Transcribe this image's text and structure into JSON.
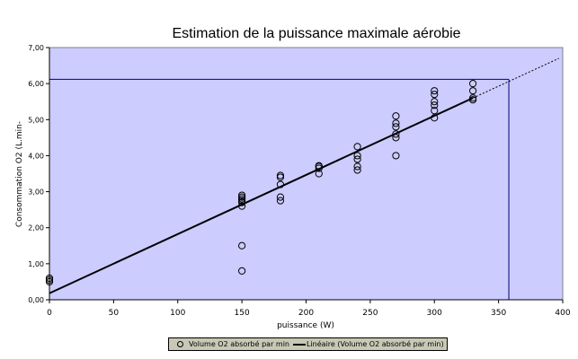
{
  "chart_data": {
    "type": "scatter",
    "title": "Estimation de la puissance maximale aérobie",
    "xlabel": "puissance (W)",
    "ylabel": "Consommation O2 (L.min-",
    "xlim": [
      0,
      400
    ],
    "ylim": [
      0,
      7
    ],
    "x_ticks": [
      "0",
      "50",
      "100",
      "150",
      "200",
      "250",
      "300",
      "350",
      "400"
    ],
    "y_ticks": [
      "0,00",
      "1,00",
      "2,00",
      "3,00",
      "4,00",
      "5,00",
      "6,00",
      "7,00"
    ],
    "grid": false,
    "background": "#ccccff",
    "legend_position": "bottom",
    "series": [
      {
        "name": "Volume O2 absorbé par min",
        "kind": "scatter",
        "points": [
          [
            0,
            0.5
          ],
          [
            0,
            0.55
          ],
          [
            0,
            0.6
          ],
          [
            150,
            0.8
          ],
          [
            150,
            1.5
          ],
          [
            150,
            2.6
          ],
          [
            150,
            2.7
          ],
          [
            150,
            2.75
          ],
          [
            150,
            2.8
          ],
          [
            150,
            2.85
          ],
          [
            150,
            2.9
          ],
          [
            180,
            2.75
          ],
          [
            180,
            2.85
          ],
          [
            180,
            3.2
          ],
          [
            180,
            3.4
          ],
          [
            180,
            3.45
          ],
          [
            210,
            3.5
          ],
          [
            210,
            3.65
          ],
          [
            210,
            3.7
          ],
          [
            210,
            3.72
          ],
          [
            240,
            3.6
          ],
          [
            240,
            3.7
          ],
          [
            240,
            3.9
          ],
          [
            240,
            4.0
          ],
          [
            240,
            4.25
          ],
          [
            270,
            4.0
          ],
          [
            270,
            4.5
          ],
          [
            270,
            4.6
          ],
          [
            270,
            4.8
          ],
          [
            270,
            4.9
          ],
          [
            270,
            5.1
          ],
          [
            300,
            5.05
          ],
          [
            300,
            5.25
          ],
          [
            300,
            5.4
          ],
          [
            300,
            5.5
          ],
          [
            300,
            5.7
          ],
          [
            300,
            5.8
          ],
          [
            330,
            5.55
          ],
          [
            330,
            5.6
          ],
          [
            330,
            5.8
          ],
          [
            330,
            6.0
          ]
        ]
      },
      {
        "name": "Linéaire (Volume O2 absorbé par min)",
        "kind": "trendline",
        "points": [
          [
            0,
            0.18
          ],
          [
            330,
            5.6
          ]
        ]
      }
    ],
    "extrapolation": {
      "points": [
        [
          330,
          5.6
        ],
        [
          397,
          6.7
        ]
      ]
    },
    "reference_lines": {
      "x": 358,
      "y": 6.12
    }
  }
}
